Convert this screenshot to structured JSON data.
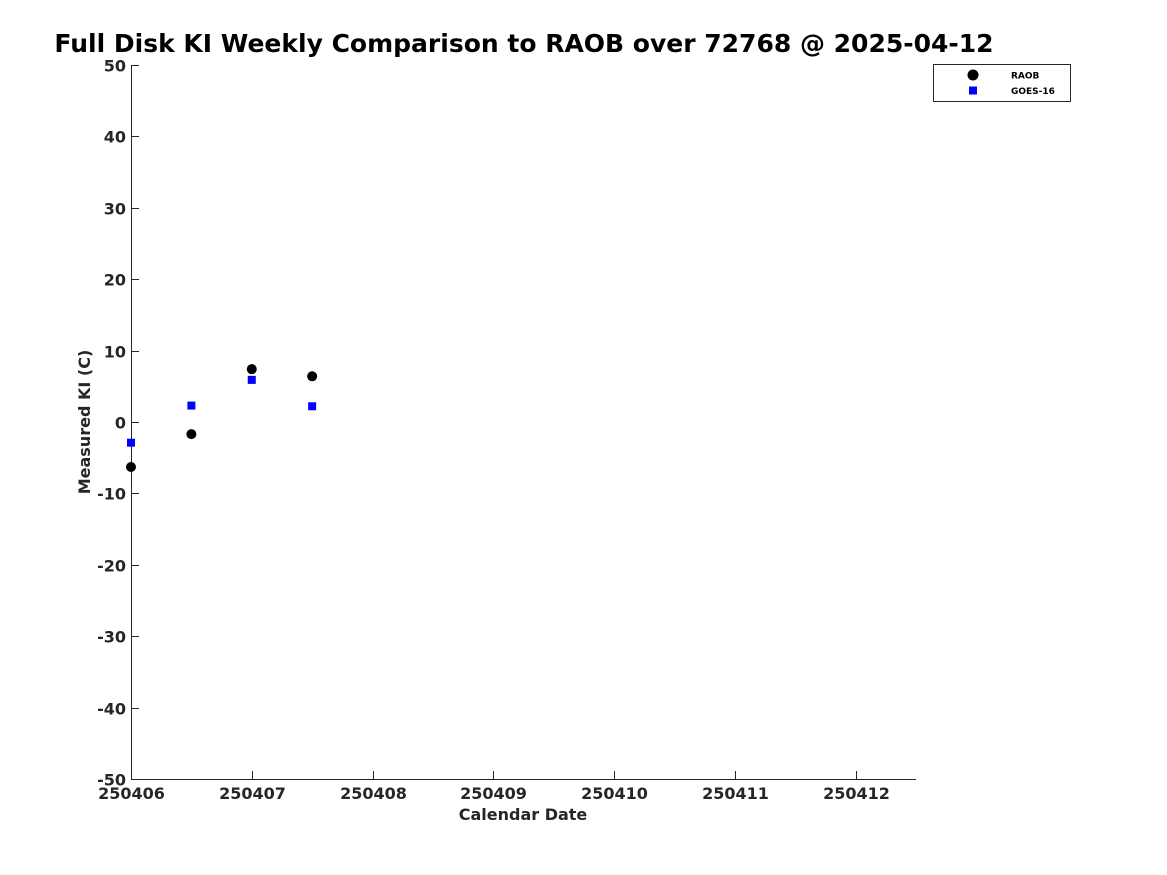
{
  "chart_data": {
    "type": "scatter",
    "title": "Full Disk KI Weekly Comparison to RAOB over 72768 @ 2025-04-12",
    "xlabel": "Calendar Date",
    "ylabel": "Measured KI (C)",
    "xlim": [
      250406,
      250412.5
    ],
    "ylim": [
      -50,
      50
    ],
    "xticks": [
      250406,
      250407,
      250408,
      250409,
      250410,
      250411,
      250412
    ],
    "xtick_labels": [
      "250406",
      "250407",
      "250408",
      "250409",
      "250410",
      "250411",
      "250412"
    ],
    "yticks": [
      50,
      40,
      30,
      20,
      10,
      0,
      -10,
      -20,
      -30,
      -40,
      -50
    ],
    "ytick_labels": [
      "50",
      "40",
      "30",
      "20",
      "10",
      "0",
      "-10",
      "-20",
      "-30",
      "-40",
      "-50"
    ],
    "grid": false,
    "legend_position": "top-right",
    "series": [
      {
        "name": "RAOB",
        "marker": "circle",
        "color": "#000000",
        "x": [
          250406,
          250406.5,
          250407,
          250407.5
        ],
        "y": [
          -6.3,
          -1.7,
          7.4,
          6.4
        ]
      },
      {
        "name": "GOES-16",
        "marker": "square",
        "color": "#0000ff",
        "x": [
          250406,
          250406.5,
          250407,
          250407.5
        ],
        "y": [
          -2.9,
          2.3,
          5.9,
          2.2
        ]
      }
    ]
  }
}
